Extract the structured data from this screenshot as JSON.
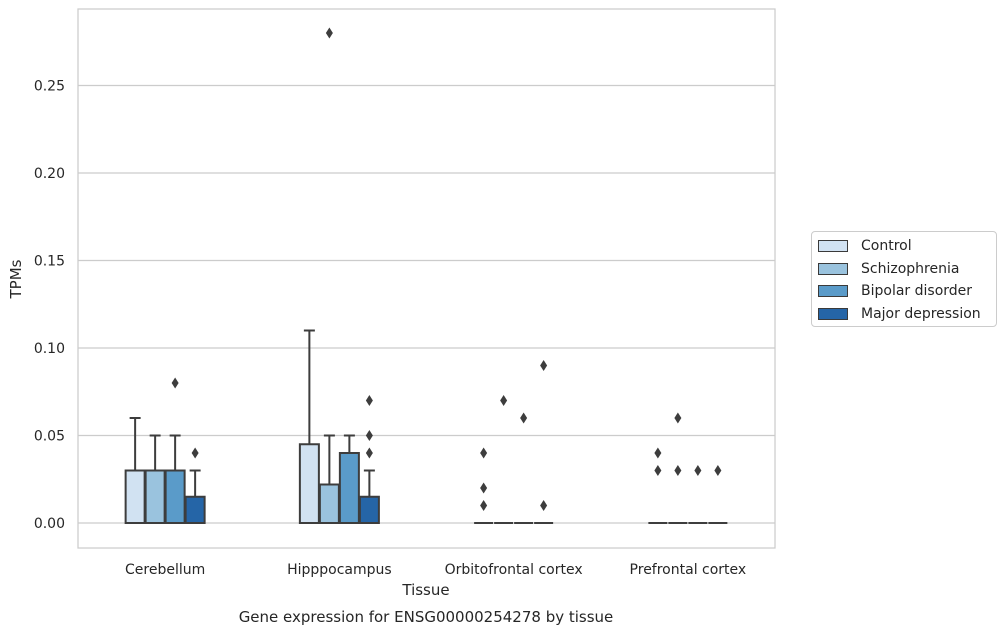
{
  "chart_data": {
    "type": "box",
    "title": "Gene expression for ENSG00000254278 by tissue",
    "xlabel": "Tissue",
    "ylabel": "TPMs",
    "ylim": [
      -0.014,
      0.295
    ],
    "yticks": [
      0.0,
      0.05,
      0.1,
      0.15,
      0.2,
      0.25
    ],
    "ytick_labels": [
      "0.00",
      "0.05",
      "0.10",
      "0.15",
      "0.20",
      "0.25"
    ],
    "grid": "horizontal",
    "legend_position": "right",
    "categories": [
      "Cerebellum",
      "Hipppocampus",
      "Orbitofrontal cortex",
      "Prefrontal cortex"
    ],
    "series": [
      {
        "name": "Control",
        "color": "#d1e2f2",
        "boxes": [
          {
            "q1": 0.0,
            "median": 0.0,
            "q3": 0.03,
            "whisker_low": 0.0,
            "whisker_high": 0.06,
            "outliers": []
          },
          {
            "q1": 0.0,
            "median": 0.0,
            "q3": 0.045,
            "whisker_low": 0.0,
            "whisker_high": 0.11,
            "outliers": []
          },
          {
            "q1": 0.0,
            "median": 0.0,
            "q3": 0.0,
            "whisker_low": 0.0,
            "whisker_high": 0.0,
            "outliers": [
              0.01,
              0.02,
              0.04
            ]
          },
          {
            "q1": 0.0,
            "median": 0.0,
            "q3": 0.0,
            "whisker_low": 0.0,
            "whisker_high": 0.0,
            "outliers": [
              0.03,
              0.04
            ]
          }
        ]
      },
      {
        "name": "Schizophrenia",
        "color": "#9ac3de",
        "boxes": [
          {
            "q1": 0.0,
            "median": 0.0,
            "q3": 0.03,
            "whisker_low": 0.0,
            "whisker_high": 0.05,
            "outliers": []
          },
          {
            "q1": 0.0,
            "median": 0.0,
            "q3": 0.022,
            "whisker_low": 0.0,
            "whisker_high": 0.05,
            "outliers": [
              0.28
            ]
          },
          {
            "q1": 0.0,
            "median": 0.0,
            "q3": 0.0,
            "whisker_low": 0.0,
            "whisker_high": 0.0,
            "outliers": [
              0.07
            ]
          },
          {
            "q1": 0.0,
            "median": 0.0,
            "q3": 0.0,
            "whisker_low": 0.0,
            "whisker_high": 0.0,
            "outliers": [
              0.03,
              0.06
            ]
          }
        ]
      },
      {
        "name": "Bipolar disorder",
        "color": "#5a9bc9",
        "boxes": [
          {
            "q1": 0.0,
            "median": 0.0,
            "q3": 0.03,
            "whisker_low": 0.0,
            "whisker_high": 0.05,
            "outliers": [
              0.08
            ]
          },
          {
            "q1": 0.0,
            "median": 0.0,
            "q3": 0.04,
            "whisker_low": 0.0,
            "whisker_high": 0.05,
            "outliers": []
          },
          {
            "q1": 0.0,
            "median": 0.0,
            "q3": 0.0,
            "whisker_low": 0.0,
            "whisker_high": 0.0,
            "outliers": [
              0.06
            ]
          },
          {
            "q1": 0.0,
            "median": 0.0,
            "q3": 0.0,
            "whisker_low": 0.0,
            "whisker_high": 0.0,
            "outliers": [
              0.03
            ]
          }
        ]
      },
      {
        "name": "Major depression",
        "color": "#2565a7",
        "boxes": [
          {
            "q1": 0.0,
            "median": 0.0,
            "q3": 0.015,
            "whisker_low": 0.0,
            "whisker_high": 0.03,
            "outliers": [
              0.04
            ]
          },
          {
            "q1": 0.0,
            "median": 0.0,
            "q3": 0.015,
            "whisker_low": 0.0,
            "whisker_high": 0.03,
            "outliers": [
              0.04,
              0.05,
              0.07
            ]
          },
          {
            "q1": 0.0,
            "median": 0.0,
            "q3": 0.0,
            "whisker_low": 0.0,
            "whisker_high": 0.0,
            "outliers": [
              0.01,
              0.09
            ]
          },
          {
            "q1": 0.0,
            "median": 0.0,
            "q3": 0.0,
            "whisker_low": 0.0,
            "whisker_high": 0.0,
            "outliers": [
              0.03
            ]
          }
        ]
      }
    ]
  }
}
